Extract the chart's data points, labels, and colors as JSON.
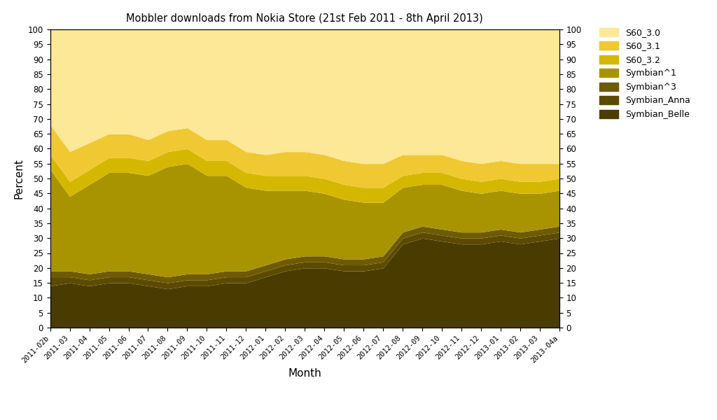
{
  "title": "Mobbler downloads from Nokia Store (21st Feb 2011 - 8th April 2013)",
  "xlabel": "Month",
  "ylabel": "Percent",
  "months": [
    "2011-02b",
    "2011-03",
    "2011-04",
    "2011-05",
    "2011-06",
    "2011-07",
    "2011-08",
    "2011-09",
    "2011-10",
    "2011-11",
    "2011-12",
    "2012-01",
    "2012-02",
    "2012-03",
    "2012-04",
    "2012-05",
    "2012-06",
    "2012-07",
    "2012-08",
    "2012-09",
    "2012-10",
    "2012-11",
    "2012-12",
    "2013-01",
    "2013-02",
    "2013-03",
    "2013-04a"
  ],
  "series": {
    "Symbian_Belle": [
      14,
      15,
      14,
      15,
      15,
      14,
      13,
      14,
      14,
      15,
      15,
      17,
      19,
      20,
      20,
      19,
      19,
      20,
      28,
      30,
      29,
      28,
      28,
      29,
      28,
      29,
      30
    ],
    "Symbian_Anna": [
      3,
      2,
      2,
      2,
      2,
      2,
      2,
      2,
      2,
      2,
      2,
      2,
      2,
      2,
      2,
      2,
      2,
      2,
      2,
      2,
      2,
      2,
      2,
      2,
      2,
      2,
      2
    ],
    "Symbian^3": [
      2,
      2,
      2,
      2,
      2,
      2,
      2,
      2,
      2,
      2,
      2,
      2,
      2,
      2,
      2,
      2,
      2,
      2,
      2,
      2,
      2,
      2,
      2,
      2,
      2,
      2,
      2
    ],
    "Symbian^1": [
      34,
      25,
      30,
      33,
      33,
      33,
      37,
      37,
      33,
      32,
      28,
      25,
      23,
      22,
      21,
      20,
      19,
      18,
      15,
      14,
      15,
      14,
      13,
      13,
      13,
      12,
      12
    ],
    "S60_3.2": [
      5,
      5,
      5,
      5,
      5,
      5,
      5,
      5,
      5,
      5,
      5,
      5,
      5,
      5,
      5,
      5,
      5,
      5,
      4,
      4,
      4,
      4,
      4,
      4,
      4,
      4,
      4
    ],
    "S60_3.1": [
      10,
      10,
      9,
      8,
      8,
      7,
      7,
      7,
      7,
      7,
      7,
      7,
      8,
      8,
      8,
      8,
      8,
      8,
      7,
      6,
      6,
      6,
      6,
      6,
      6,
      6,
      5
    ],
    "S60_3.0": [
      32,
      41,
      38,
      35,
      35,
      37,
      34,
      33,
      37,
      37,
      41,
      42,
      41,
      41,
      42,
      44,
      45,
      45,
      42,
      42,
      42,
      44,
      45,
      44,
      45,
      45,
      45
    ]
  },
  "colors": {
    "Symbian_Belle": "#4a3c00",
    "Symbian_Anna": "#5c4a00",
    "Symbian^3": "#6e5a00",
    "Symbian^1": "#a89400",
    "S60_3.2": "#d4b800",
    "S60_3.1": "#f0c832",
    "S60_3.0": "#fce896"
  },
  "ylim": [
    0,
    100
  ],
  "yticks": [
    0,
    5,
    10,
    15,
    20,
    25,
    30,
    35,
    40,
    45,
    50,
    55,
    60,
    65,
    70,
    75,
    80,
    85,
    90,
    95,
    100
  ],
  "bg_color": "#ffffff",
  "plot_bg_color": "#ffffff",
  "figsize": [
    10.24,
    6.0
  ],
  "dpi": 100
}
